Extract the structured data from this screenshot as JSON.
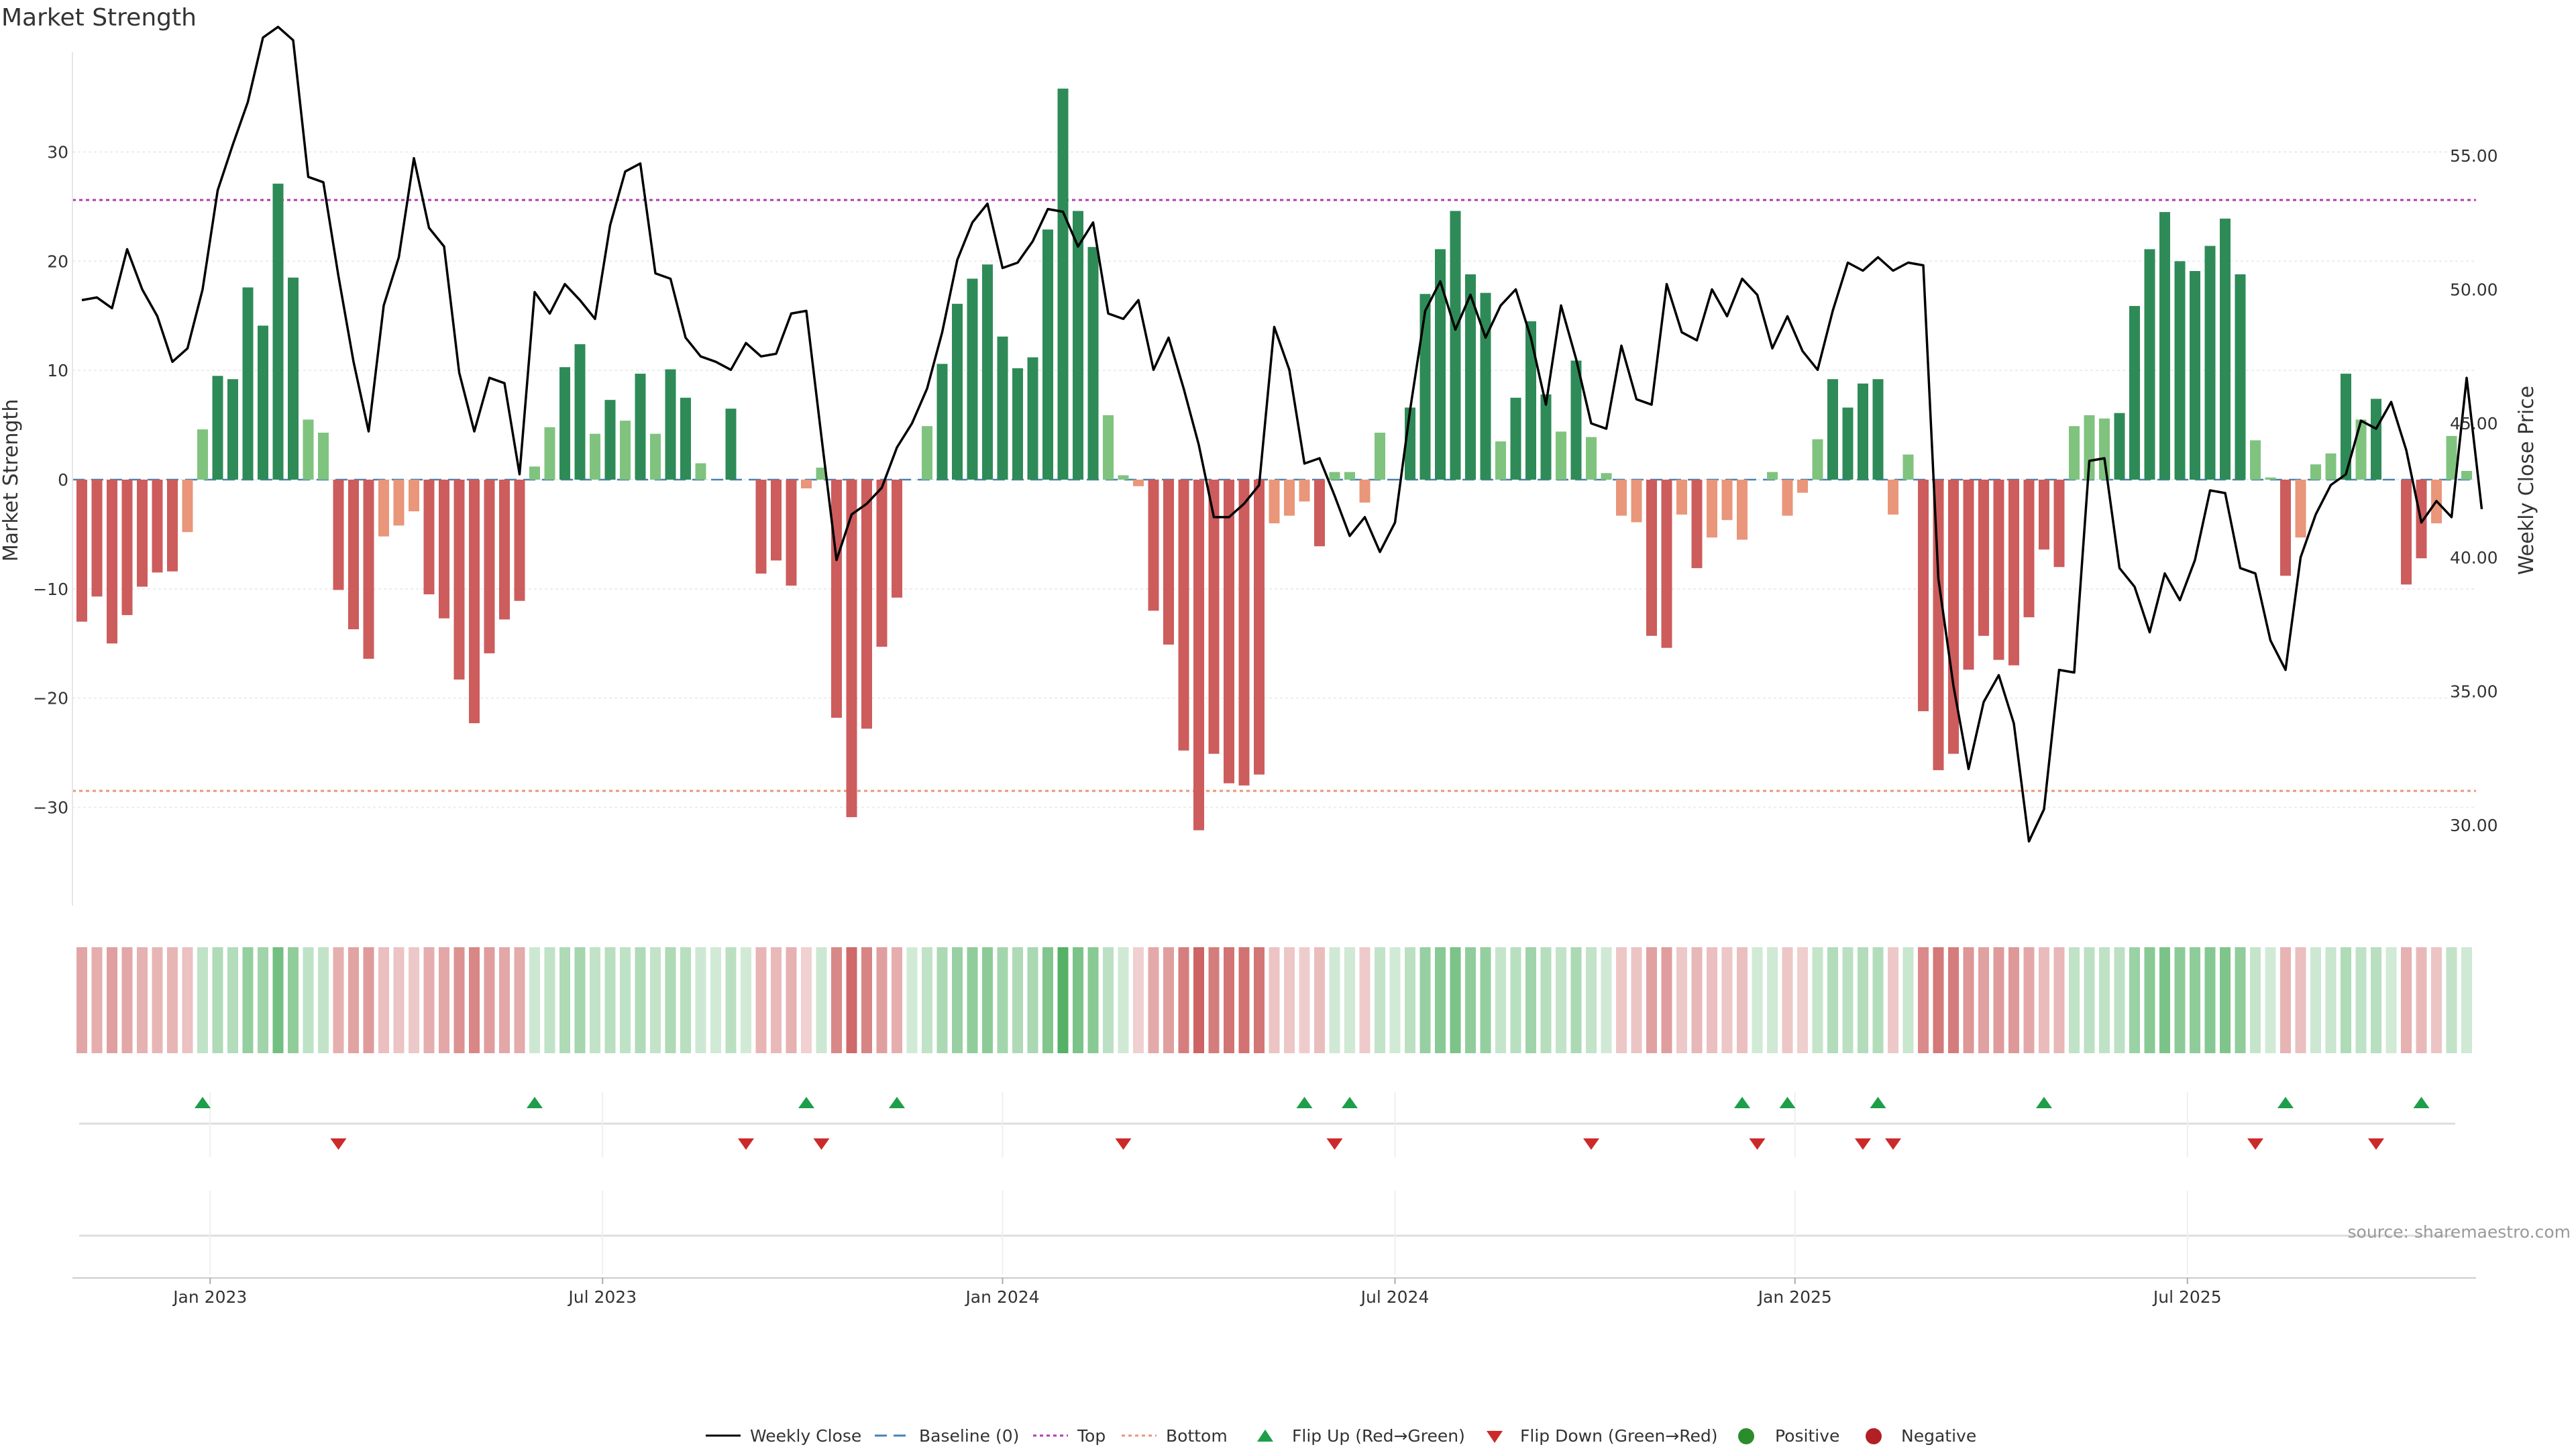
{
  "chart_data": {
    "type": "bar+line",
    "title": "Market Strength",
    "left_axis": {
      "label": "Market Strength",
      "ylim": [
        -39,
        39
      ],
      "ticks": [
        30,
        20,
        10,
        0,
        -10,
        -20,
        -30
      ],
      "tick_labels": [
        "30",
        "20",
        "10",
        "0",
        "−10",
        "−20",
        "−30"
      ]
    },
    "right_axis": {
      "label": "Weekly Close Price",
      "ylim": [
        27.0,
        58.8
      ],
      "ticks": [
        55,
        50,
        45,
        40,
        35,
        30
      ],
      "tick_labels": [
        "55.00",
        "50.00",
        "45.00",
        "40.00",
        "35.00",
        "30.00"
      ]
    },
    "x_ticks": [
      {
        "week": 8.5,
        "label": "Jan 2023"
      },
      {
        "week": 34.5,
        "label": "Jul 2023"
      },
      {
        "week": 61,
        "label": "Jan 2024"
      },
      {
        "week": 87,
        "label": "Jul 2024"
      },
      {
        "week": 113.5,
        "label": "Jan 2025"
      },
      {
        "week": 139.5,
        "label": "Jul 2025"
      }
    ],
    "weeks": 158,
    "top_level": 25.6,
    "bottom_level": -28.5,
    "strength": [
      -13,
      -10.7,
      -15,
      -12.4,
      -9.8,
      -8.5,
      -8.4,
      -4.8,
      4.6,
      9.5,
      9.2,
      17.6,
      14.1,
      27.1,
      18.5,
      5.5,
      4.3,
      -10.1,
      -13.7,
      -16.4,
      -5.2,
      -4.2,
      -2.9,
      -10.5,
      -12.7,
      -18.3,
      -22.3,
      -15.9,
      -12.8,
      -11.1,
      1.2,
      4.8,
      10.3,
      12.4,
      4.2,
      7.3,
      5.4,
      9.7,
      4.2,
      10.1,
      7.5,
      1.5,
      0,
      6.5,
      0,
      -8.6,
      -7.4,
      -9.7,
      -0.8,
      1.1,
      -21.8,
      -30.9,
      -22.8,
      -15.3,
      -10.8,
      0,
      4.9,
      10.6,
      16.1,
      18.4,
      19.7,
      13.1,
      10.2,
      11.2,
      22.9,
      35.8,
      24.6,
      21.3,
      5.9,
      0.4,
      -0.6,
      -12,
      -15.1,
      -24.8,
      -32.1,
      -25.1,
      -27.8,
      -28,
      -27,
      -4,
      -3.3,
      -2,
      -6.1,
      0.7,
      0.7,
      -2.1,
      4.3,
      0,
      6.6,
      17,
      21.1,
      24.6,
      18.8,
      17.1,
      3.5,
      7.5,
      14.5,
      7.8,
      4.4,
      10.9,
      3.9,
      0.6,
      -3.3,
      -3.9,
      -14.3,
      -15.4,
      -3.2,
      -8.1,
      -5.3,
      -3.7,
      -5.5,
      0,
      0.7,
      -3.3,
      -1.2,
      3.7,
      9.2,
      6.6,
      8.8,
      9.2,
      -3.2,
      2.3,
      -21.2,
      -26.6,
      -25.1,
      -17.4,
      -14.3,
      -16.5,
      -17,
      -12.6,
      -6.4,
      -8,
      4.9,
      5.9,
      5.6,
      6.1,
      15.9,
      21.1,
      24.5,
      20,
      19.1,
      21.4,
      23.9,
      18.8,
      3.6,
      0.2,
      -8.8,
      -5.3,
      1.4,
      2.4,
      9.7,
      5.5,
      7.4,
      0,
      -9.6,
      -7.2,
      -4,
      4,
      0.8
    ],
    "close": [
      49.6,
      49.7,
      49.3,
      51.5,
      50,
      49,
      47.3,
      47.8,
      50,
      53.7,
      55.4,
      57,
      59.4,
      59.8,
      59.3,
      54.2,
      54,
      50.5,
      47.3,
      44.7,
      49.4,
      51.2,
      54.9,
      52.3,
      51.6,
      46.9,
      44.7,
      46.7,
      46.5,
      43.1,
      49.9,
      49.1,
      50.2,
      49.6,
      48.9,
      52.4,
      54.4,
      54.7,
      50.6,
      50.4,
      48.2,
      47.5,
      47.3,
      47,
      48,
      47.5,
      47.6,
      49.1,
      49.2,
      44.5,
      39.9,
      41.6,
      42,
      42.6,
      44.1,
      45,
      46.3,
      48.4,
      51.1,
      52.5,
      53.2,
      50.8,
      51,
      51.8,
      53,
      52.9,
      51.6,
      52.5,
      49.1,
      48.9,
      49.6,
      47,
      48.2,
      46.3,
      44.2,
      41.5,
      41.5,
      42,
      42.7,
      48.6,
      47,
      43.5,
      43.7,
      42.3,
      40.8,
      41.5,
      40.2,
      41.3,
      45.5,
      49.2,
      50.3,
      48.5,
      49.8,
      48.2,
      49.4,
      50,
      48.2,
      45.7,
      49.4,
      47.4,
      45,
      44.8,
      47.9,
      45.9,
      45.7,
      50.2,
      48.4,
      48.1,
      50,
      49,
      50.4,
      49.8,
      47.8,
      49,
      47.7,
      47,
      49.2,
      51,
      50.7,
      51.2,
      50.7,
      51,
      50.9,
      39.2,
      35.2,
      32.1,
      34.6,
      35.6,
      33.8,
      29.4,
      30.6,
      35.8,
      35.7,
      43.6,
      43.7,
      39.6,
      38.9,
      37.2,
      39.4,
      38.4,
      39.9,
      42.5,
      42.4,
      39.6,
      39.4,
      36.9,
      35.8,
      40,
      41.6,
      42.7,
      43.1,
      45.1,
      44.8,
      45.8,
      44,
      41.3,
      42.1,
      41.5,
      46.7,
      41.8
    ],
    "flip_up_weeks": [
      8,
      30,
      48,
      54,
      81,
      84,
      110,
      113,
      119,
      130,
      146,
      155
    ],
    "flip_down_weeks": [
      17,
      44,
      49,
      69,
      83,
      100,
      111,
      118,
      120,
      144,
      152
    ],
    "legend": {
      "weekly_close": "Weekly Close",
      "baseline": "Baseline (0)",
      "top": "Top",
      "bottom": "Bottom",
      "flip_up": "Flip Up (Red→Green)",
      "flip_down": "Flip Down (Green→Red)",
      "positive": "Positive",
      "negative": "Negative"
    },
    "source": "source: sharemaestro.com"
  },
  "colors": {
    "strong_green": "#2e8b57",
    "light_green": "#7fc37f",
    "strong_red": "#cd5c5c",
    "light_red": "#e9967a",
    "line": "#000000",
    "baseline": "#4682b4",
    "top": "#b03bb0",
    "bottom": "#e9967a",
    "flip_up": "#1e9e4a",
    "flip_down": "#cc2a2a",
    "positive_dot": "#2b8c2b",
    "negative_dot": "#b21f24"
  }
}
